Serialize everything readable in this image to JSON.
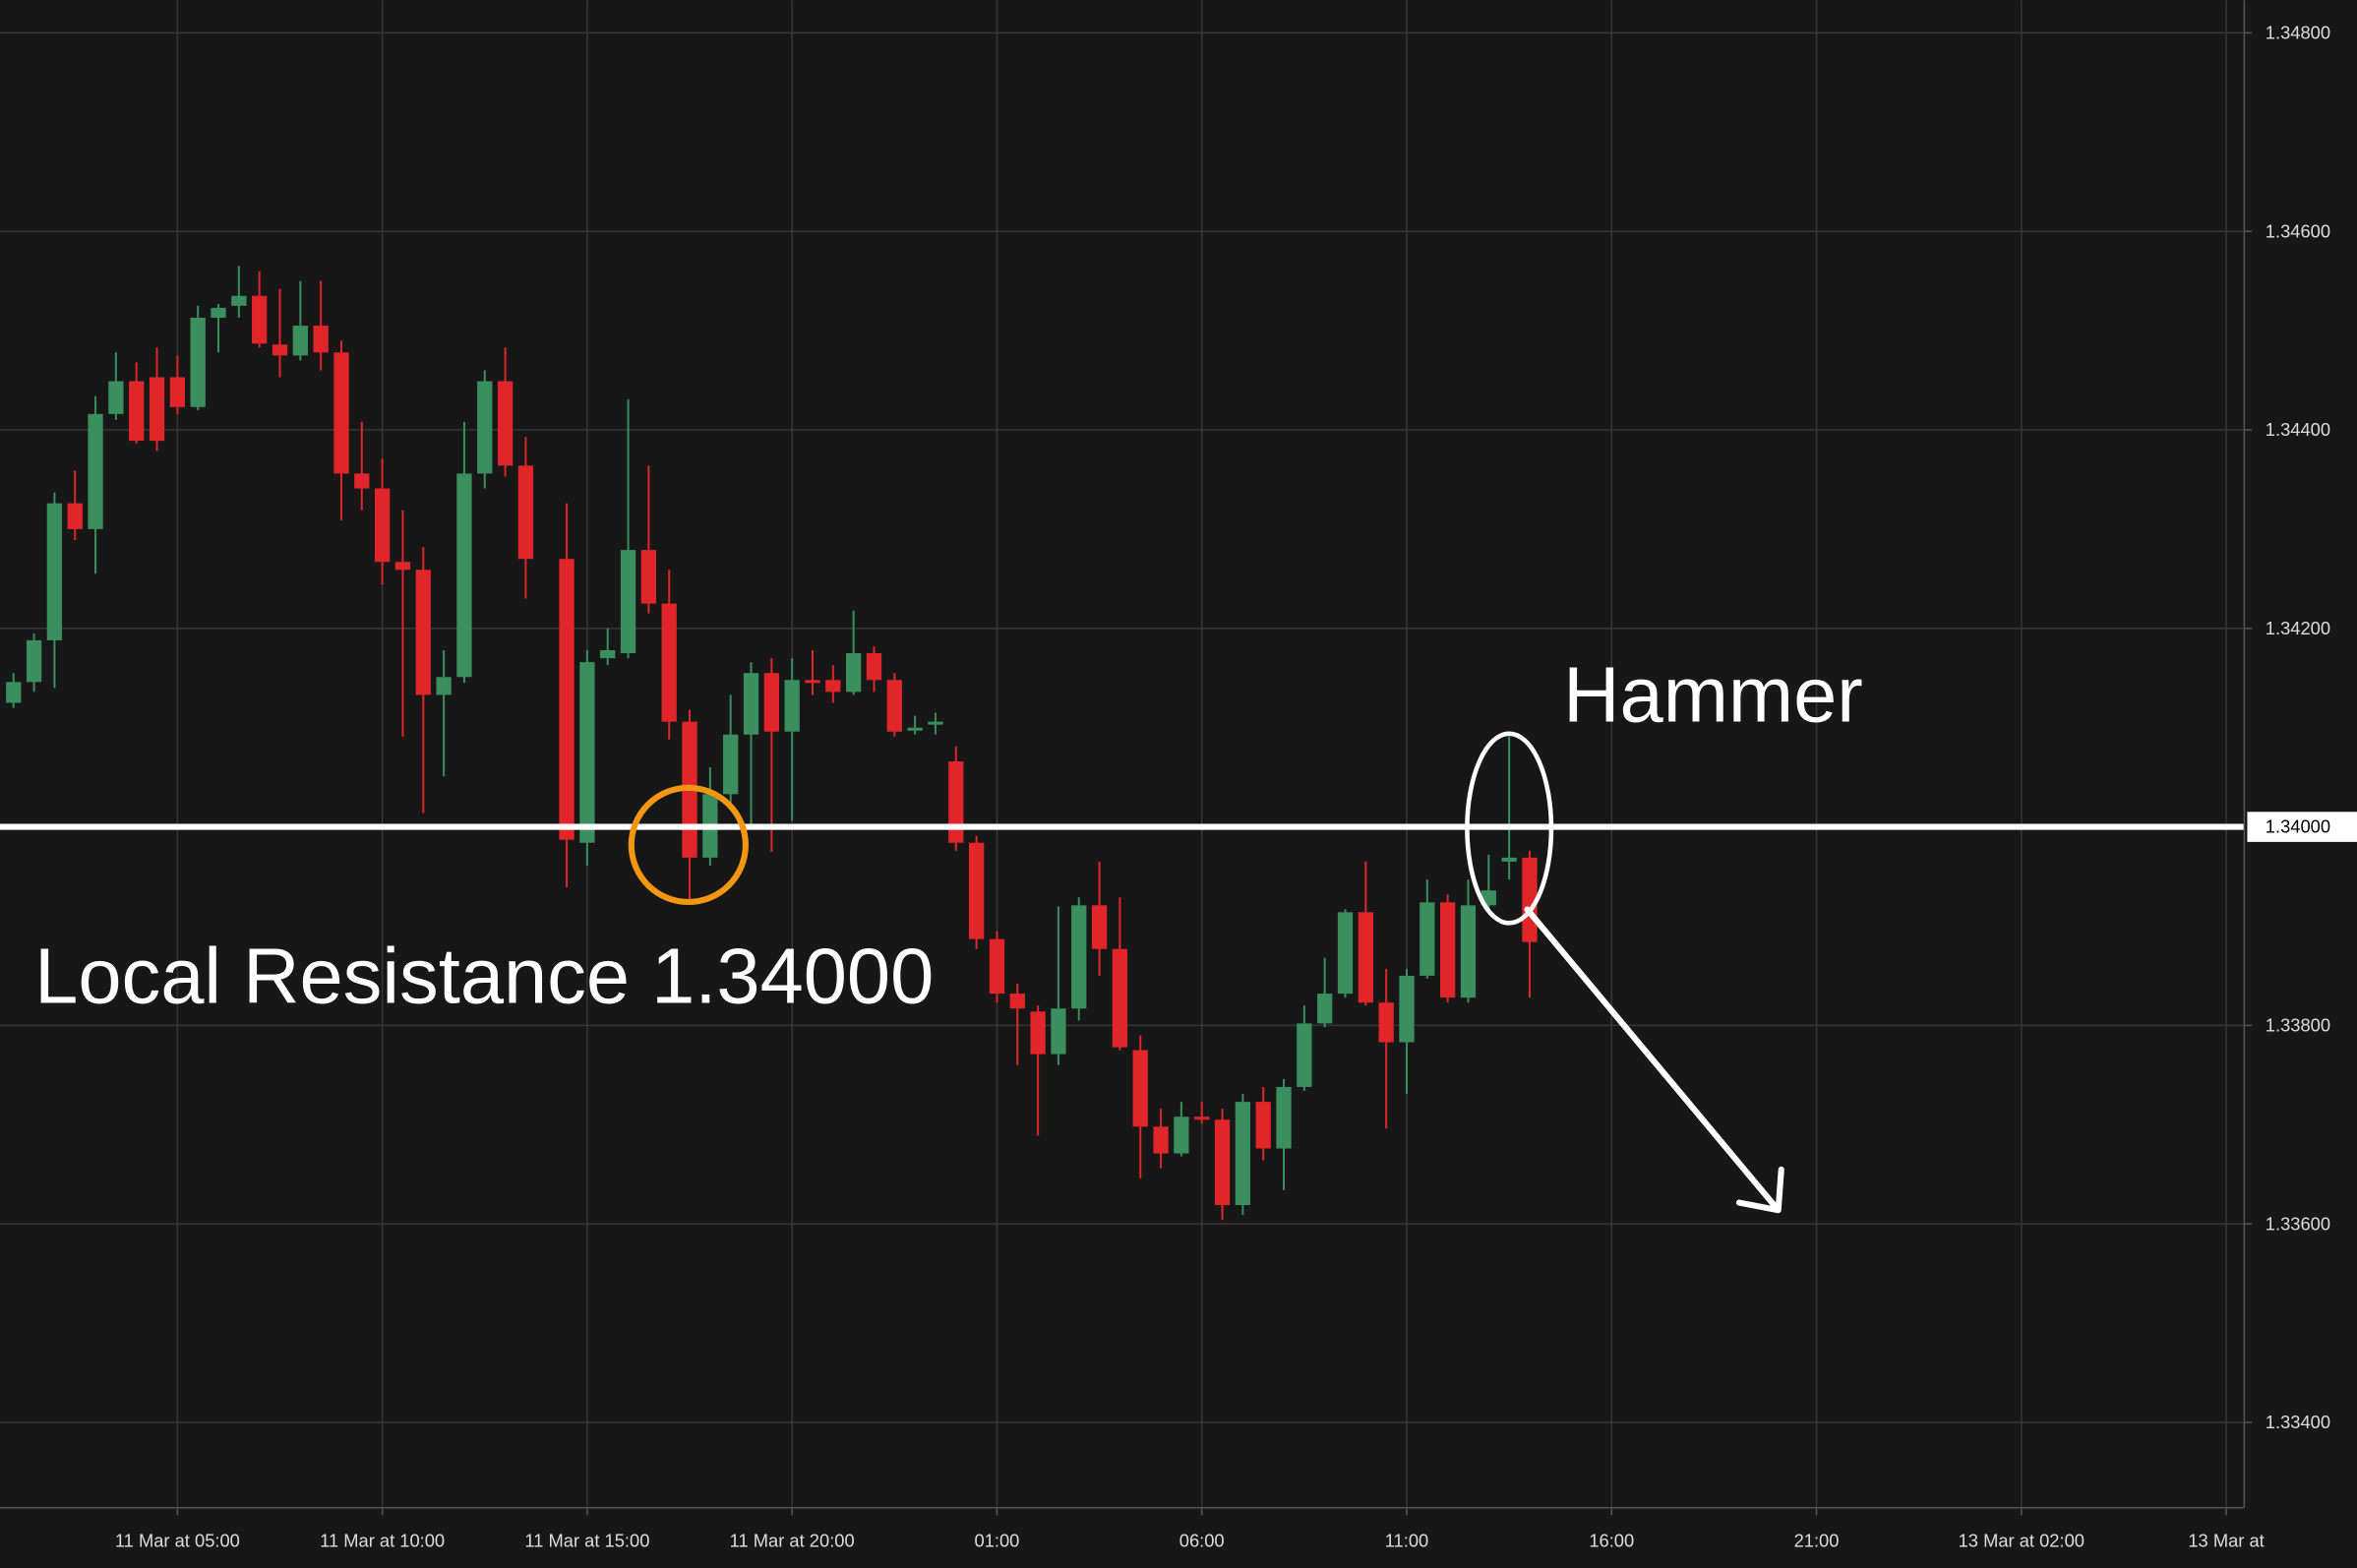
{
  "chart_data": {
    "type": "candlestick",
    "x": [
      1,
      1.5,
      2,
      2.5,
      3,
      3.5,
      4,
      4.5,
      5,
      5.5,
      6,
      6.5,
      7,
      7.5,
      8,
      8.5,
      9,
      9.5,
      10,
      10.5,
      11,
      11.5,
      12,
      12.5,
      13,
      13.5,
      14.5,
      15,
      15.5,
      16,
      16.5,
      17,
      17.5,
      18,
      18.5,
      19,
      19.5,
      20,
      20.5,
      21,
      21.5,
      22,
      22.5,
      23,
      23.5,
      24,
      24.5,
      25,
      25.5,
      26,
      26.5,
      27,
      27.5,
      28,
      28.5,
      29,
      29.5,
      30,
      30.5,
      31,
      31.5,
      32,
      32.5,
      33,
      33.5,
      34,
      34.5,
      35,
      35.5,
      36,
      36.5,
      37,
      37.5,
      38
    ],
    "open": [
      1.34125,
      1.34146,
      1.34188,
      1.34326,
      1.343,
      1.34416,
      1.34449,
      1.34453,
      1.34453,
      1.34423,
      1.34513,
      1.34525,
      1.34535,
      1.34486,
      1.34475,
      1.34505,
      1.34478,
      1.34356,
      1.34341,
      1.34267,
      1.34259,
      1.34133,
      1.34151,
      1.34356,
      1.34449,
      1.34364,
      1.3427,
      1.33984,
      1.3417,
      1.34175,
      1.34279,
      1.34225,
      1.34106,
      1.33969,
      1.34033,
      1.34093,
      1.34155,
      1.34096,
      1.34148,
      1.34148,
      1.34136,
      1.34175,
      1.34148,
      1.34097,
      1.34103,
      1.34066,
      1.33984,
      1.33887,
      1.33832,
      1.33814,
      1.33771,
      1.33817,
      1.33921,
      1.33877,
      1.33775,
      1.33698,
      1.33671,
      1.33708,
      1.33705,
      1.33619,
      1.33723,
      1.33676,
      1.33738,
      1.33802,
      1.33832,
      1.33914,
      1.33823,
      1.33783,
      1.3385,
      1.33924,
      1.33828,
      1.33921,
      1.33965,
      1.33969
    ],
    "high": [
      1.34155,
      1.34195,
      1.34337,
      1.34359,
      1.34434,
      1.34478,
      1.34468,
      1.34483,
      1.34475,
      1.34525,
      1.34527,
      1.34565,
      1.3456,
      1.34542,
      1.3455,
      1.3455,
      1.3449,
      1.34408,
      1.34371,
      1.34319,
      1.34282,
      1.34178,
      1.34408,
      1.3446,
      1.34483,
      1.34393,
      1.34326,
      1.34178,
      1.342,
      1.34431,
      1.34364,
      1.34259,
      1.34118,
      1.3406,
      1.34133,
      1.34166,
      1.3417,
      1.3417,
      1.34178,
      1.34163,
      1.34218,
      1.34182,
      1.34155,
      1.34112,
      1.34115,
      1.34081,
      1.33991,
      1.33895,
      1.33842,
      1.3382,
      1.3392,
      1.33929,
      1.33965,
      1.33929,
      1.3379,
      1.33716,
      1.33723,
      1.33723,
      1.33716,
      1.33731,
      1.33738,
      1.33746,
      1.3382,
      1.33868,
      1.33917,
      1.33965,
      1.33857,
      1.33857,
      1.33947,
      1.33932,
      1.33947,
      1.33972,
      1.34091,
      1.33976
    ],
    "low": [
      1.3412,
      1.34136,
      1.3414,
      1.34289,
      1.34255,
      1.3441,
      1.34386,
      1.34379,
      1.34416,
      1.3442,
      1.34478,
      1.34513,
      1.34483,
      1.34453,
      1.3447,
      1.3446,
      1.34309,
      1.34319,
      1.34244,
      1.34091,
      1.34014,
      1.34051,
      1.34145,
      1.34341,
      1.34353,
      1.3423,
      1.33939,
      1.33961,
      1.34163,
      1.3417,
      1.34215,
      1.34088,
      1.33927,
      1.33961,
      1.34018,
      1.34,
      1.33975,
      1.34006,
      1.34133,
      1.34125,
      1.34133,
      1.34136,
      1.34091,
      1.34093,
      1.34093,
      1.33976,
      1.33877,
      1.33823,
      1.3376,
      1.33689,
      1.3376,
      1.33805,
      1.3385,
      1.33775,
      1.33646,
      1.33656,
      1.33668,
      1.33701,
      1.33604,
      1.33609,
      1.33664,
      1.33634,
      1.33734,
      1.33798,
      1.33828,
      1.3382,
      1.33696,
      1.33731,
      1.33847,
      1.33823,
      1.33823,
      1.33917,
      1.33947,
      1.33828
    ],
    "close": [
      1.34146,
      1.34188,
      1.34326,
      1.343,
      1.34416,
      1.34449,
      1.34389,
      1.34389,
      1.34423,
      1.34513,
      1.34523,
      1.34535,
      1.34487,
      1.34475,
      1.34505,
      1.34478,
      1.34356,
      1.34341,
      1.34267,
      1.34259,
      1.34133,
      1.34151,
      1.34356,
      1.34449,
      1.34364,
      1.3427,
      1.33987,
      1.34166,
      1.34178,
      1.34279,
      1.34225,
      1.34106,
      1.33969,
      1.34033,
      1.34093,
      1.34155,
      1.34096,
      1.34148,
      1.34145,
      1.34136,
      1.34175,
      1.34148,
      1.34096,
      1.341,
      1.34106,
      1.33984,
      1.33887,
      1.33832,
      1.33817,
      1.33771,
      1.33817,
      1.33921,
      1.33877,
      1.33778,
      1.33698,
      1.33671,
      1.33708,
      1.33705,
      1.33619,
      1.33723,
      1.33676,
      1.33738,
      1.33802,
      1.33832,
      1.33914,
      1.33823,
      1.33783,
      1.3385,
      1.33924,
      1.33828,
      1.33921,
      1.33936,
      1.33969,
      1.33884
    ],
    "up_color": "#3b8e5e",
    "down_color": "#e1262b",
    "xlim": [
      0.67,
      55.44
    ],
    "ylim": [
      1.33314,
      1.34833
    ],
    "xticks": [
      {
        "value": 5,
        "label": "11 Mar at 05:00"
      },
      {
        "value": 10,
        "label": "11 Mar at 10:00"
      },
      {
        "value": 15,
        "label": "11 Mar at 15:00"
      },
      {
        "value": 20,
        "label": "11 Mar at 20:00"
      },
      {
        "value": 25,
        "label": "01:00"
      },
      {
        "value": 30,
        "label": "06:00"
      },
      {
        "value": 35,
        "label": "11:00"
      },
      {
        "value": 40,
        "label": "16:00"
      },
      {
        "value": 45,
        "label": "21:00"
      },
      {
        "value": 50,
        "label": "13 Mar at 02:00"
      },
      {
        "value": 55,
        "label": "13 Mar at"
      }
    ],
    "yticks": [
      {
        "value": 1.348,
        "label": "1.34800"
      },
      {
        "value": 1.346,
        "label": "1.34600"
      },
      {
        "value": 1.344,
        "label": "1.34400"
      },
      {
        "value": 1.342,
        "label": "1.34200"
      },
      {
        "value": 1.338,
        "label": "1.33800"
      },
      {
        "value": 1.336,
        "label": "1.33600"
      },
      {
        "value": 1.334,
        "label": "1.33400"
      }
    ],
    "grid": true,
    "level": {
      "value": 1.34,
      "label": "1.34000"
    },
    "annotations": [
      "Local Resistance 1.34000",
      "Hammer"
    ]
  }
}
